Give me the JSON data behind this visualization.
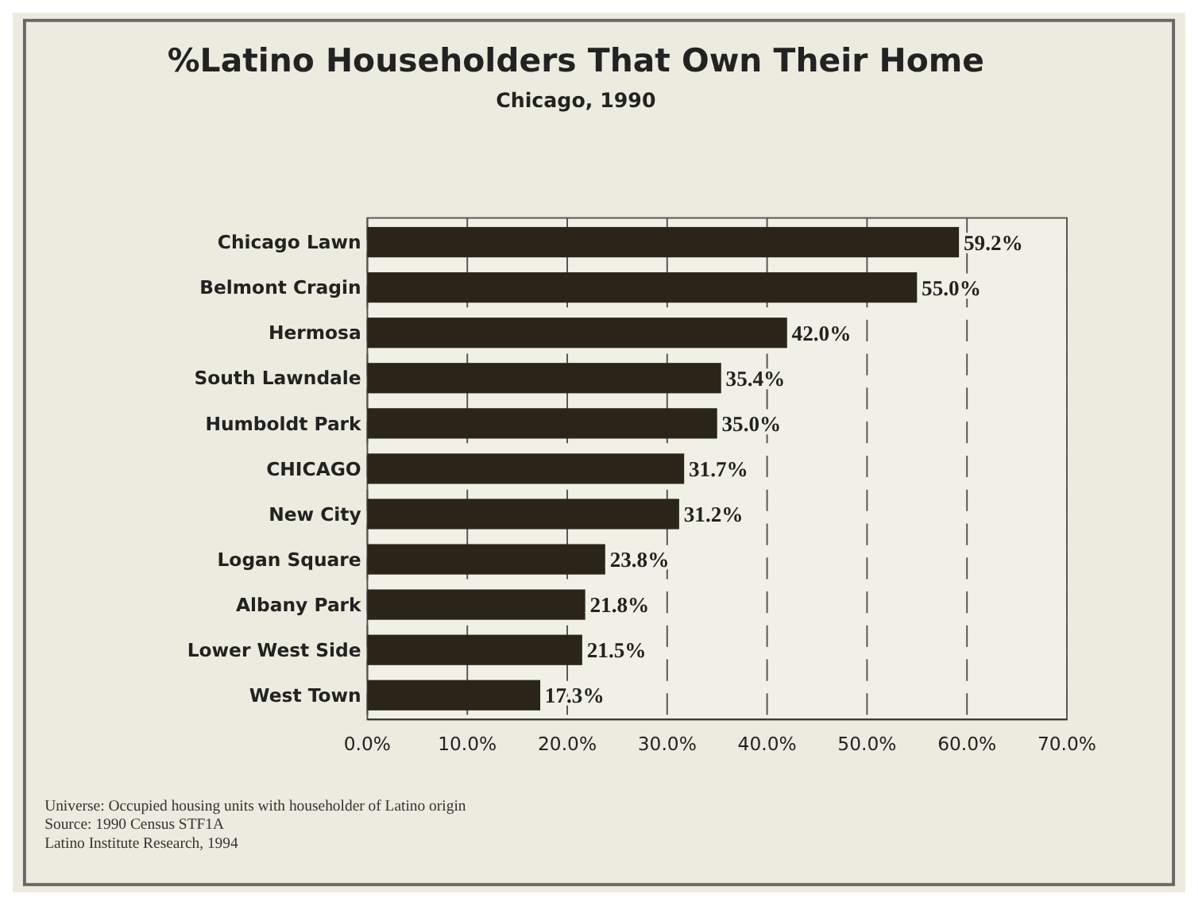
{
  "chart_data": {
    "type": "bar",
    "orientation": "horizontal",
    "title": "%Latino Householders That Own Their Home",
    "subtitle": "Chicago, 1990",
    "categories": [
      "Chicago Lawn",
      "Belmont Cragin",
      "Hermosa",
      "South Lawndale",
      "Humboldt Park",
      "CHICAGO",
      "New City",
      "Logan Square",
      "Albany Park",
      "Lower West Side",
      "West Town"
    ],
    "values": [
      59.2,
      55.0,
      42.0,
      35.4,
      35.0,
      31.7,
      31.2,
      23.8,
      21.8,
      21.5,
      17.3
    ],
    "value_labels": [
      "59.2%",
      "55.0%",
      "42.0%",
      "35.4%",
      "35.0%",
      "31.7%",
      "31.2%",
      "23.8%",
      "21.8%",
      "21.5%",
      "17.3%"
    ],
    "color": "#2b2418",
    "xlim": [
      0,
      70
    ],
    "xticks": [
      {
        "value": 0,
        "label": "0.0%"
      },
      {
        "value": 10,
        "label": "10.0%"
      },
      {
        "value": 20,
        "label": "20.0%"
      },
      {
        "value": 30,
        "label": "30.0%"
      },
      {
        "value": 40,
        "label": "40.0%"
      },
      {
        "value": 50,
        "label": "50.0%"
      },
      {
        "value": 60,
        "label": "60.0%"
      },
      {
        "value": 70,
        "label": "70.0%"
      }
    ],
    "grid": "x",
    "annotations": [
      "Universe: Occupied housing units with householder of Latino origin",
      "Source: 1990 Census STF1A",
      "Latino Institute Research, 1994"
    ]
  }
}
